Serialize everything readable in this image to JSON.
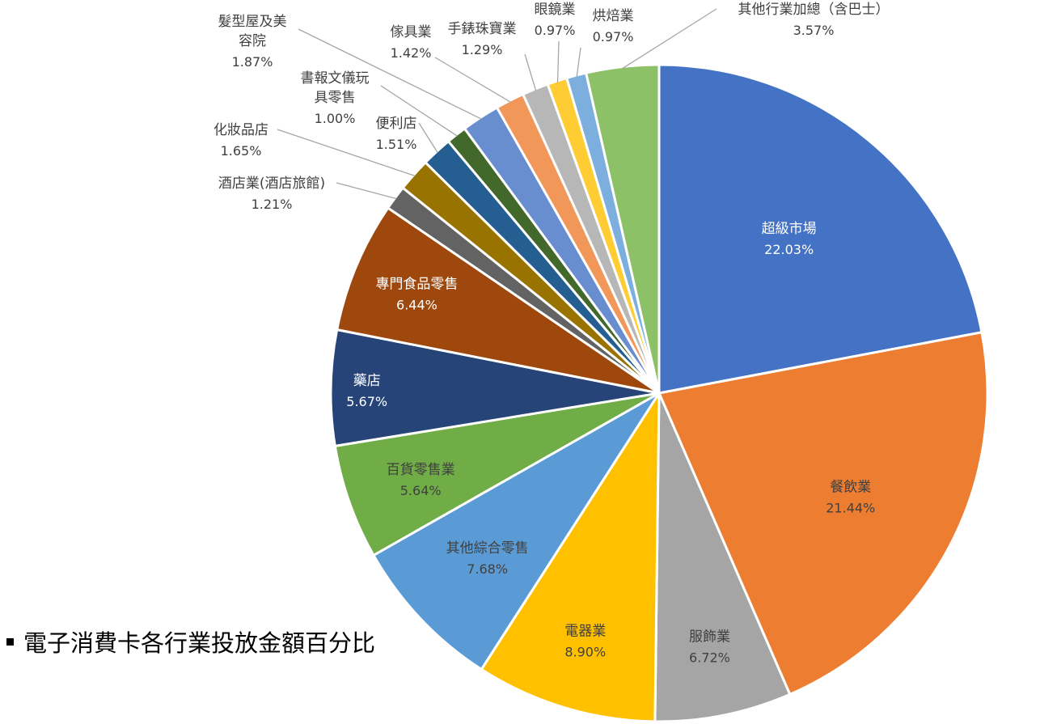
{
  "caption": {
    "text": "電子消費卡各行業投放金額百分比"
  },
  "chart_data": {
    "type": "pie",
    "start_angle_deg": 0,
    "direction": "clockwise",
    "slices": [
      {
        "name": "超級市場",
        "value": 22.03,
        "label": "22.03%",
        "color": "#4472C4",
        "text_color": "#ffffff"
      },
      {
        "name": "餐飲業",
        "value": 21.44,
        "label": "21.44%",
        "color": "#ED7D31",
        "text_color": "#404040"
      },
      {
        "name": "服飾業",
        "value": 6.72,
        "label": "6.72%",
        "color": "#A5A5A5",
        "text_color": "#404040"
      },
      {
        "name": "電器業",
        "value": 8.9,
        "label": "8.90%",
        "color": "#FFC000",
        "text_color": "#404040"
      },
      {
        "name": "其他綜合零售",
        "value": 7.68,
        "label": "7.68%",
        "color": "#5B9BD5",
        "text_color": "#404040"
      },
      {
        "name": "百貨零售業",
        "value": 5.64,
        "label": "5.64%",
        "color": "#70AD47",
        "text_color": "#404040"
      },
      {
        "name": "藥店",
        "value": 5.67,
        "label": "5.67%",
        "color": "#264478",
        "text_color": "#ffffff"
      },
      {
        "name": "專門食品零售",
        "value": 6.44,
        "label": "6.44%",
        "color": "#9E480E",
        "text_color": "#ffffff"
      },
      {
        "name": "酒店業(酒店旅館)",
        "value": 1.21,
        "label": "1.21%",
        "color": "#636363",
        "text_color": "#404040"
      },
      {
        "name": "化妝品店",
        "value": 1.65,
        "label": "1.65%",
        "color": "#997300",
        "text_color": "#404040"
      },
      {
        "name": "便利店",
        "value": 1.51,
        "label": "1.51%",
        "color": "#255E91",
        "text_color": "#404040"
      },
      {
        "name": "書報文儀玩具零售",
        "value": 1.0,
        "label": "1.00%",
        "color": "#43682B",
        "text_color": "#404040"
      },
      {
        "name": "髮型屋及美容院",
        "value": 1.87,
        "label": "1.87%",
        "color": "#698ED0",
        "text_color": "#404040"
      },
      {
        "name": "傢具業",
        "value": 1.42,
        "label": "1.42%",
        "color": "#F1975A",
        "text_color": "#404040"
      },
      {
        "name": "手錶珠寶業",
        "value": 1.29,
        "label": "1.29%",
        "color": "#B7B7B7",
        "text_color": "#404040"
      },
      {
        "name": "眼鏡業",
        "value": 0.97,
        "label": "0.97%",
        "color": "#FFCD33",
        "text_color": "#404040"
      },
      {
        "name": "烘焙業",
        "value": 0.97,
        "label": "0.97%",
        "color": "#7CAFDD",
        "text_color": "#404040"
      },
      {
        "name": "其他行業加總（含巴士）",
        "value": 3.57,
        "label": "3.57%",
        "color": "#8CC168",
        "text_color": "#404040"
      }
    ]
  }
}
